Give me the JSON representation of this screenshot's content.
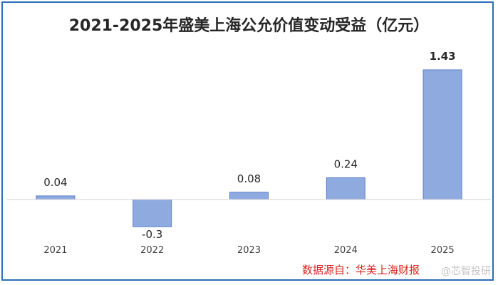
{
  "chart_data": {
    "type": "bar",
    "title": "2021-2025年盛美上海公允价值变动受益（亿元）",
    "categories": [
      "2021",
      "2022",
      "2023",
      "2024",
      "2025"
    ],
    "values": [
      0.04,
      -0.3,
      0.08,
      0.24,
      1.43
    ],
    "data_labels": [
      "0.04",
      "-0.3",
      "0.08",
      "0.24",
      "1.43"
    ],
    "ylim": [
      -0.35,
      1.6
    ],
    "grid": false,
    "bar_color": "#8eaadf",
    "bar_edge_color": "#5b7fc7"
  },
  "source_note": "数据源自：华美上海财报",
  "watermark": "@芯智投研",
  "colors": {
    "border": "#2f6db5",
    "source_text": "#d9261c"
  }
}
